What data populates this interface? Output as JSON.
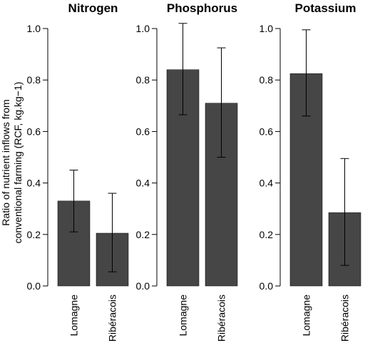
{
  "chart_data": {
    "type": "bar",
    "ylabel_lines": [
      "Ratio of nutrient inflows from",
      "conventional farming (RCF, kg.kg−1)"
    ],
    "ylim": [
      0,
      1.0
    ],
    "yticks": [
      "0.0",
      "0.2",
      "0.4",
      "0.6",
      "0.8",
      "1.0"
    ],
    "bar_color": "#464646",
    "grid": false,
    "panels": [
      {
        "title": "Nitrogen",
        "categories": [
          "Lomagne",
          "Ribéracois"
        ],
        "values": [
          0.33,
          0.205
        ],
        "error_low": [
          0.21,
          0.055
        ],
        "error_high": [
          0.45,
          0.36
        ]
      },
      {
        "title": "Phosphorus",
        "categories": [
          "Lomagne",
          "Ribéracois"
        ],
        "values": [
          0.84,
          0.71
        ],
        "error_low": [
          0.665,
          0.5
        ],
        "error_high": [
          1.02,
          0.925
        ]
      },
      {
        "title": "Potassium",
        "categories": [
          "Lomagne",
          "Ribéracois"
        ],
        "values": [
          0.825,
          0.285
        ],
        "error_low": [
          0.66,
          0.08
        ],
        "error_high": [
          0.995,
          0.495
        ]
      }
    ]
  }
}
